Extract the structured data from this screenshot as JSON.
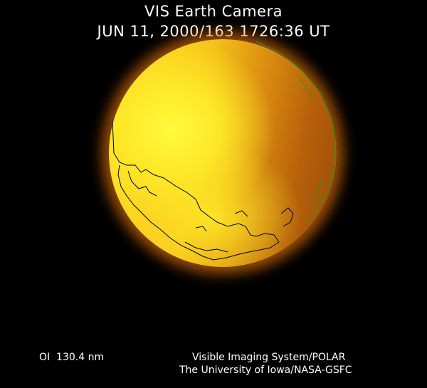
{
  "header": {
    "title": "VIS Earth Camera",
    "timestamp": "JUN 11, 2000/163 1726:36 UT"
  },
  "footer": {
    "filter": "OI  130.4 nm",
    "credit_line1": "Visible Imaging System/POLAR",
    "credit_line2": "The University of Iowa/NASA-GSFC"
  },
  "colors": {
    "background": "#000000",
    "bright_emission": "#ffe126",
    "dim_emission": "#9a4a08",
    "coastline": "#000000",
    "terminator_overlay": "#1aa01a"
  }
}
